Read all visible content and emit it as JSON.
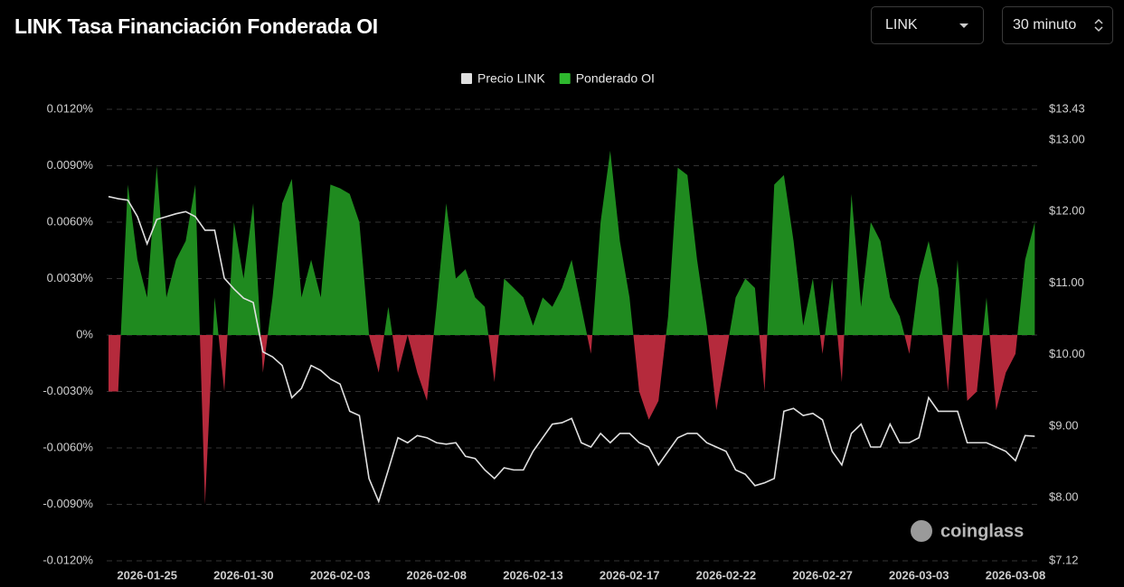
{
  "header": {
    "title": "LINK Tasa Financiación Fonderada OI",
    "symbol": "LINK",
    "interval": "30 minuto"
  },
  "watermark": "coinglass",
  "chart_data": {
    "type": "area-line",
    "categories": [
      null,
      null,
      null,
      null,
      "2026-01-25",
      null,
      null,
      null,
      null,
      null,
      null,
      null,
      null,
      null,
      "2026-01-30",
      null,
      null,
      null,
      null,
      null,
      null,
      null,
      null,
      null,
      "2026-02-03",
      null,
      null,
      null,
      null,
      null,
      null,
      null,
      null,
      null,
      "2026-02-08",
      null,
      null,
      null,
      null,
      null,
      null,
      null,
      null,
      null,
      "2026-02-13",
      null,
      null,
      null,
      null,
      null,
      null,
      null,
      null,
      null,
      "2026-02-17",
      null,
      null,
      null,
      null,
      null,
      null,
      null,
      null,
      null,
      "2026-02-22",
      null,
      null,
      null,
      null,
      null,
      null,
      null,
      null,
      null,
      "2026-02-27",
      null,
      null,
      null,
      null,
      null,
      null,
      null,
      null,
      null,
      "2026-03-03",
      null,
      null,
      null,
      null,
      null,
      null,
      null,
      null,
      null,
      "2026-03-08",
      null,
      null
    ],
    "series": [
      {
        "name": "Precio LINK",
        "color": "#e0e0e0",
        "axis": "y2",
        "values": [
          12.21,
          12.18,
          12.16,
          11.93,
          11.55,
          11.89,
          11.93,
          11.97,
          12.0,
          11.93,
          11.74,
          11.74,
          11.07,
          10.92,
          10.79,
          10.73,
          10.04,
          9.97,
          9.85,
          9.4,
          9.53,
          9.85,
          9.78,
          9.66,
          9.59,
          9.21,
          9.15,
          8.27,
          7.95,
          8.39,
          8.84,
          8.77,
          8.87,
          8.84,
          8.77,
          8.75,
          8.77,
          8.58,
          8.55,
          8.39,
          8.27,
          8.42,
          8.39,
          8.39,
          8.65,
          8.84,
          9.03,
          9.05,
          9.11,
          8.77,
          8.71,
          8.9,
          8.77,
          8.9,
          8.9,
          8.77,
          8.71,
          8.46,
          8.65,
          8.84,
          8.9,
          8.9,
          8.77,
          8.71,
          8.65,
          8.39,
          8.33,
          8.17,
          8.21,
          8.27,
          9.21,
          9.25,
          9.15,
          9.18,
          9.09,
          8.65,
          8.46,
          8.9,
          9.03,
          8.71,
          8.71,
          9.03,
          8.77,
          8.77,
          8.84,
          9.4,
          9.21,
          9.21,
          9.21,
          8.77,
          8.77,
          8.77,
          8.71,
          8.65,
          8.52,
          8.87,
          8.86
        ]
      },
      {
        "name": "Ponderado OI",
        "color": "#1f8a1f",
        "negative_color": "#b52a3c",
        "values": [
          -0.003,
          -0.003,
          0.008,
          0.004,
          0.002,
          0.009,
          0.002,
          0.004,
          0.005,
          0.008,
          -0.009,
          0.002,
          -0.003,
          0.006,
          0.003,
          0.007,
          -0.002,
          0.002,
          0.007,
          0.0083,
          0.002,
          0.004,
          0.002,
          0.008,
          0.0078,
          0.0075,
          0.006,
          0,
          -0.002,
          0.0015,
          -0.002,
          0,
          -0.002,
          -0.0035,
          0.0015,
          0.007,
          0.003,
          0.0035,
          0.002,
          0.0015,
          -0.0025,
          0.003,
          0.0025,
          0.002,
          0.0005,
          0.002,
          0.0015,
          0.0025,
          0.004,
          0.0015,
          -0.001,
          0.006,
          0.0098,
          0.005,
          0.002,
          -0.003,
          -0.0045,
          -0.0035,
          0.001,
          0.0089,
          0.0085,
          0.004,
          0.0005,
          -0.004,
          -0.001,
          0.002,
          0.003,
          0.0025,
          -0.003,
          0.008,
          0.0085,
          0.005,
          0.0005,
          0.003,
          -0.001,
          0.003,
          -0.0025,
          0.0075,
          0.0015,
          0.006,
          0.005,
          0.002,
          0.001,
          -0.001,
          0.003,
          0.005,
          0.0025,
          -0.003,
          0.004,
          -0.0035,
          -0.003,
          0.002,
          -0.004,
          -0.002,
          -0.001,
          0.004,
          0.006
        ]
      }
    ],
    "ylim": [
      -0.012,
      0.012
    ],
    "yticks": [
      {
        "value": -0.012,
        "label": "-0.0120%"
      },
      {
        "value": -0.009,
        "label": "-0.0090%"
      },
      {
        "value": -0.006,
        "label": "-0.0060%"
      },
      {
        "value": -0.003,
        "label": "-0.0030%"
      },
      {
        "value": 0,
        "label": "0%"
      },
      {
        "value": 0.003,
        "label": "0.0030%"
      },
      {
        "value": 0.006,
        "label": "0.0060%"
      },
      {
        "value": 0.009,
        "label": "0.0090%"
      },
      {
        "value": 0.012,
        "label": "0.0120%"
      }
    ],
    "y2lim": [
      7.12,
      13.43
    ],
    "y2ticks": [
      {
        "value": 7.12,
        "label": "$7.12"
      },
      {
        "value": 8,
        "label": "$8.00"
      },
      {
        "value": 9,
        "label": "$9.00"
      },
      {
        "value": 10,
        "label": "$10.00"
      },
      {
        "value": 11,
        "label": "$11.00"
      },
      {
        "value": 12,
        "label": "$12.00"
      },
      {
        "value": 13,
        "label": "$13.00"
      },
      {
        "value": 13.43,
        "label": "$13.43"
      }
    ],
    "grid": true
  }
}
